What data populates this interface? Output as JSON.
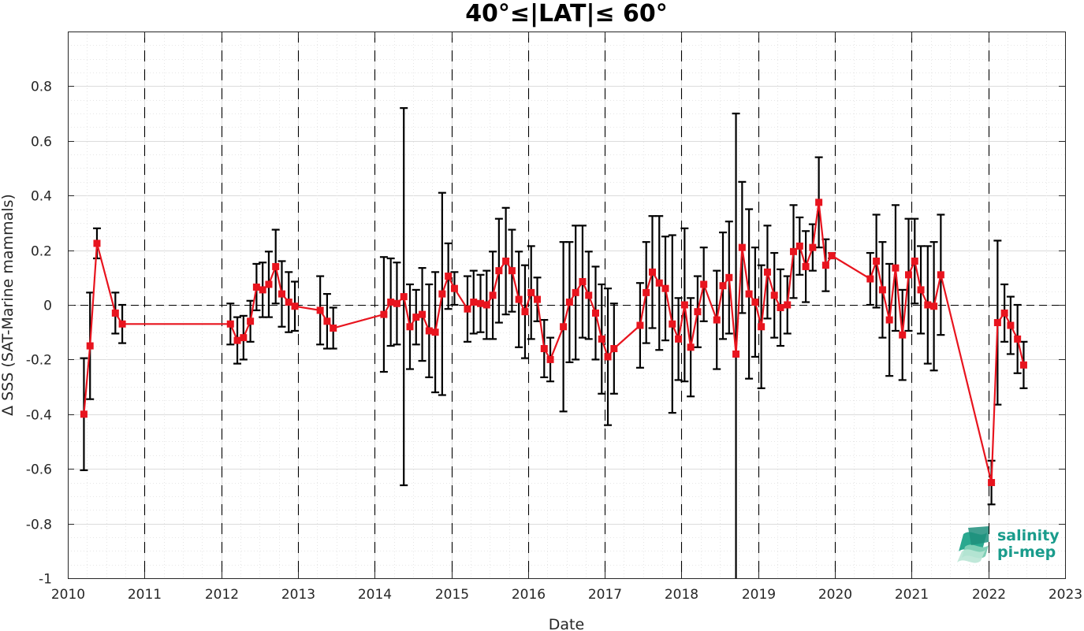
{
  "chart_data": {
    "type": "line",
    "title": "40°≤|LAT|≤ 60°",
    "xlabel": "Date",
    "ylabel": "Δ SSS (SAT-Marine mammals)",
    "xlim": [
      2010,
      2023
    ],
    "ylim": [
      -1,
      1
    ],
    "x_ticks": [
      2010,
      2011,
      2012,
      2013,
      2014,
      2015,
      2016,
      2017,
      2018,
      2019,
      2020,
      2021,
      2022,
      2023
    ],
    "x_tick_labels": [
      "2010",
      "2011",
      "2012",
      "2013",
      "2014",
      "2015",
      "2016",
      "2017",
      "2018",
      "2019",
      "2020",
      "2021",
      "2022",
      "2023"
    ],
    "y_ticks": [
      -1,
      -0.8,
      -0.6,
      -0.4,
      -0.2,
      0,
      0.2,
      0.4,
      0.6,
      0.8
    ],
    "y_tick_labels": [
      "-1",
      "-0.8",
      "-0.6",
      "-0.4",
      "-0.2",
      "0",
      "0.2",
      "0.4",
      "0.6",
      "0.8"
    ],
    "grid": true,
    "minor_grid": true,
    "year_boundaries": [
      2011,
      2012,
      2013,
      2014,
      2015,
      2016,
      2017,
      2018,
      2019,
      2020,
      2021,
      2022
    ],
    "zero_line": 0,
    "colors": {
      "line": "#e8141e",
      "marker": "#e8141e",
      "errorbar": "#000000",
      "logo": "#1a9c8c"
    },
    "series": [
      {
        "x": [
          2010.21,
          2010.29,
          2010.38,
          2010.62,
          2010.71,
          2012.12,
          2012.21,
          2012.29,
          2012.38,
          2012.46,
          2012.54,
          2012.62,
          2012.71,
          2012.79,
          2012.88,
          2012.96,
          2013.29,
          2013.38,
          2013.46,
          2014.12,
          2014.21,
          2014.29,
          2014.38,
          2014.46,
          2014.54,
          2014.62,
          2014.71,
          2014.79,
          2014.88,
          2014.96,
          2015.04,
          2015.21,
          2015.29,
          2015.38,
          2015.46,
          2015.54,
          2015.62,
          2015.71,
          2015.79,
          2015.88,
          2015.96,
          2016.04,
          2016.12,
          2016.21,
          2016.29,
          2016.46,
          2016.54,
          2016.62,
          2016.71,
          2016.79,
          2016.88,
          2016.96,
          2017.04,
          2017.12,
          2017.46,
          2017.54,
          2017.62,
          2017.71,
          2017.79,
          2017.88,
          2017.96,
          2018.04,
          2018.12,
          2018.21,
          2018.29,
          2018.46,
          2018.54,
          2018.62,
          2018.71,
          2018.79,
          2018.88,
          2018.96,
          2019.04,
          2019.12,
          2019.21,
          2019.29,
          2019.38,
          2019.46,
          2019.54,
          2019.62,
          2019.71,
          2019.79,
          2019.88,
          2019.96,
          2020.46,
          2020.54,
          2020.62,
          2020.71,
          2020.79,
          2020.88,
          2020.96,
          2021.04,
          2021.12,
          2021.21,
          2021.29,
          2021.38,
          2022.04,
          2022.12,
          2022.21,
          2022.29,
          2022.38,
          2022.46
        ],
        "y": [
          -0.4,
          -0.15,
          0.225,
          -0.03,
          -0.07,
          -0.07,
          -0.13,
          -0.12,
          -0.06,
          0.065,
          0.055,
          0.075,
          0.14,
          0.04,
          0.01,
          -0.005,
          -0.02,
          -0.06,
          -0.085,
          -0.035,
          0.01,
          0.005,
          0.03,
          -0.08,
          -0.045,
          -0.035,
          -0.095,
          -0.1,
          0.04,
          0.105,
          0.06,
          -0.015,
          0.01,
          0.005,
          0.0,
          0.035,
          0.125,
          0.16,
          0.125,
          0.02,
          -0.025,
          0.045,
          0.02,
          -0.16,
          -0.2,
          -0.08,
          0.01,
          0.045,
          0.085,
          0.035,
          -0.03,
          -0.125,
          -0.19,
          -0.16,
          -0.075,
          0.045,
          0.12,
          0.08,
          0.06,
          -0.07,
          -0.125,
          0.0,
          -0.155,
          -0.025,
          0.075,
          -0.055,
          0.07,
          0.1,
          -0.18,
          0.21,
          0.04,
          0.01,
          -0.08,
          0.12,
          0.035,
          -0.01,
          0.0,
          0.195,
          0.215,
          0.14,
          0.21,
          0.375,
          0.145,
          0.18,
          0.095,
          0.16,
          0.055,
          -0.055,
          0.135,
          -0.11,
          0.11,
          0.16,
          0.055,
          0.0,
          -0.005,
          0.11,
          -0.65,
          -0.065,
          -0.03,
          -0.075,
          -0.125,
          -0.22
        ],
        "err": [
          0.205,
          0.195,
          0.055,
          0.075,
          0.07,
          0.075,
          0.085,
          0.08,
          0.075,
          0.085,
          0.1,
          0.12,
          0.135,
          0.12,
          0.11,
          0.09,
          0.125,
          0.1,
          0.075,
          0.21,
          0.16,
          0.15,
          0.69,
          0.155,
          0.1,
          0.17,
          0.17,
          0.22,
          0.37,
          0.12,
          0.06,
          0.12,
          0.115,
          0.105,
          0.125,
          0.16,
          0.19,
          0.195,
          0.15,
          0.175,
          0.17,
          0.17,
          0.08,
          0.105,
          0.08,
          0.31,
          0.22,
          0.245,
          0.205,
          0.16,
          0.17,
          0.2,
          0.25,
          0.165,
          0.155,
          0.185,
          0.205,
          0.245,
          0.19,
          0.325,
          0.15,
          0.28,
          0.18,
          0.13,
          0.135,
          0.18,
          0.195,
          0.205,
          0.88,
          0.24,
          0.31,
          0.2,
          0.225,
          0.17,
          0.155,
          0.14,
          0.105,
          0.17,
          0.105,
          0.13,
          0.085,
          0.165,
          0.095,
          0.01,
          0.095,
          0.17,
          0.175,
          0.205,
          0.23,
          0.165,
          0.205,
          0.155,
          0.16,
          0.215,
          0.235,
          0.22,
          0.08,
          0.3,
          0.105,
          0.105,
          0.125,
          0.085
        ]
      }
    ]
  },
  "logo": {
    "line1": "salinity",
    "line2": "pi-mep"
  }
}
